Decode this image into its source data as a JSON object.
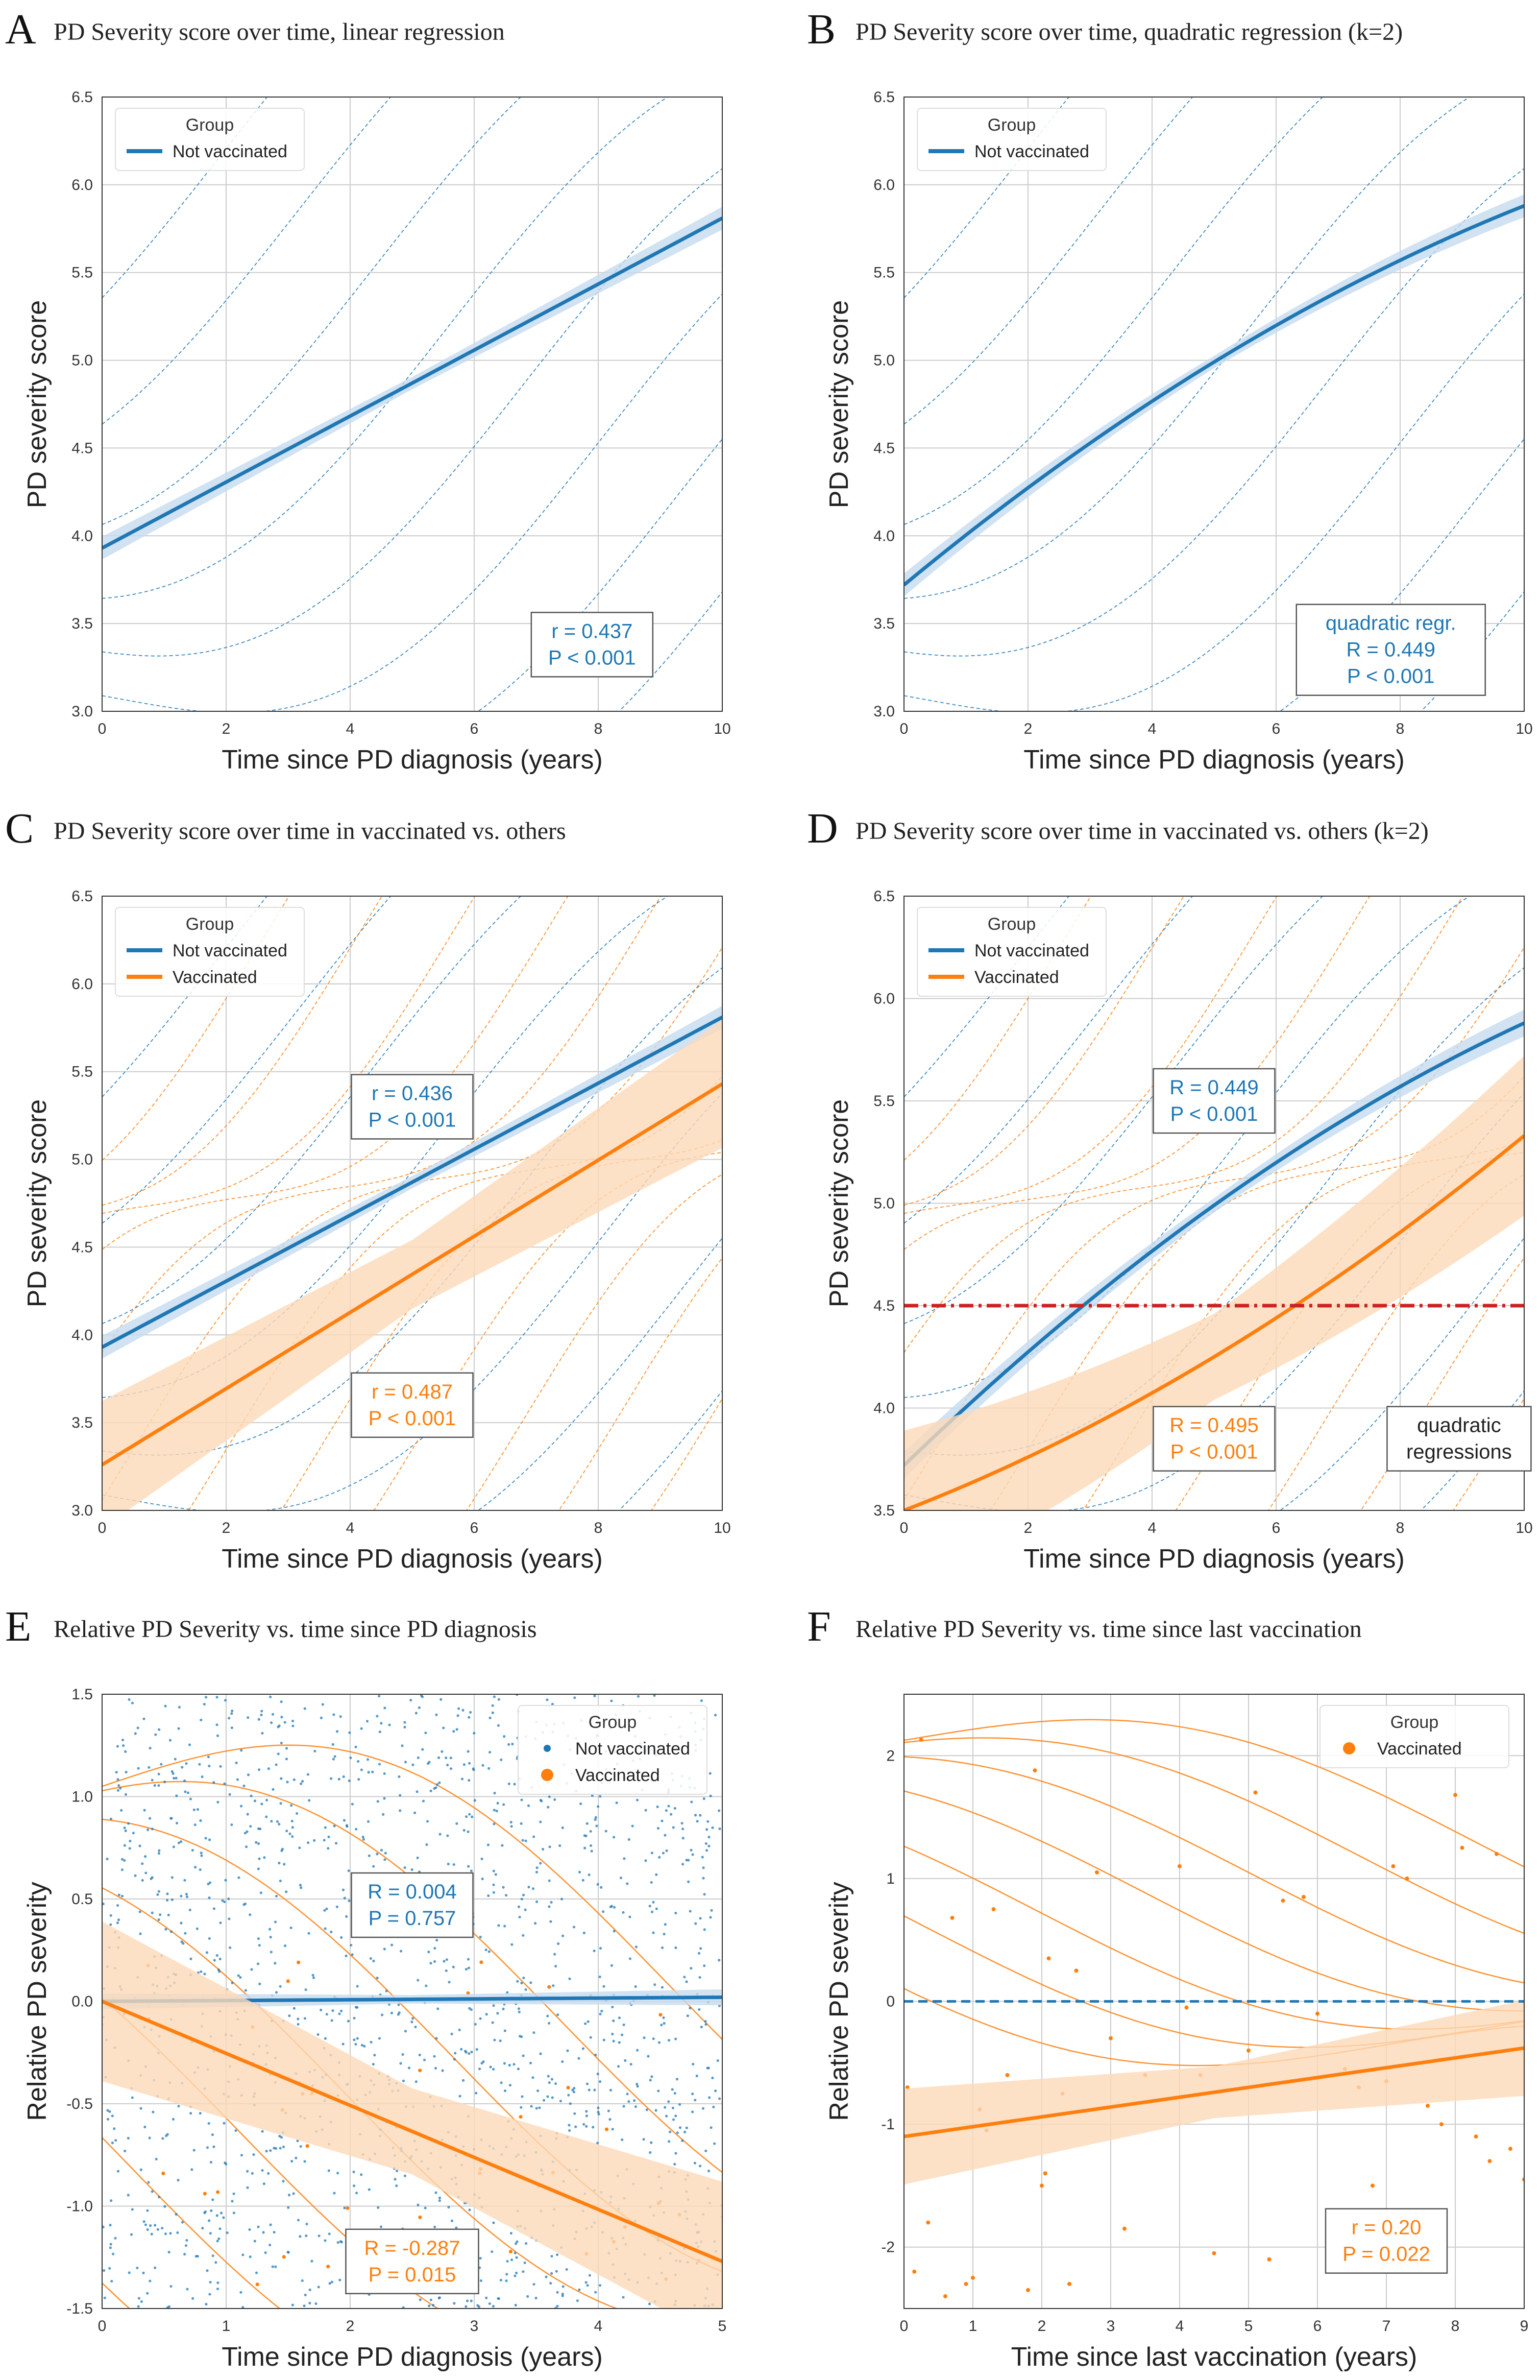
{
  "colors": {
    "blue": "#1f77b4",
    "orange": "#ff7f0e",
    "orange_band": "#fdd9b8",
    "blue_band": "#c6dbef",
    "red_dash": "#cc2222",
    "grid": "#cccccc"
  },
  "chart_data": [
    {
      "id": "A",
      "type": "line",
      "letter": "A",
      "title": "PD Severity score over time, linear regression",
      "xlabel": "Time since PD diagnosis (years)",
      "ylabel": "PD severity score",
      "xlim": [
        0,
        10
      ],
      "ylim": [
        3.0,
        6.5
      ],
      "xticks": [
        0,
        2,
        4,
        6,
        8,
        10
      ],
      "yticks": [
        3.0,
        3.5,
        4.0,
        4.5,
        5.0,
        5.5,
        6.0,
        6.5
      ],
      "legend": {
        "title": "Group",
        "position": "top-left",
        "entries": [
          {
            "label": "Not vaccinated",
            "color": "blue",
            "marker": "line"
          }
        ]
      },
      "series": [
        {
          "name": "Not vaccinated",
          "color": "blue",
          "model": "linear",
          "x": [
            0,
            10
          ],
          "y": [
            3.93,
            5.81
          ],
          "ci": 0.05
        }
      ],
      "annotations": [
        {
          "lines": [
            "r = 0.437",
            "P < 0.001"
          ],
          "color": "blue",
          "at": [
            7.9,
            3.38
          ]
        }
      ]
    },
    {
      "id": "B",
      "type": "line",
      "letter": "B",
      "title": "PD Severity score over time, quadratic regression (k=2)",
      "xlabel": "Time since PD diagnosis (years)",
      "ylabel": "PD severity score",
      "xlim": [
        0,
        10
      ],
      "ylim": [
        3.0,
        6.5
      ],
      "xticks": [
        0,
        2,
        4,
        6,
        8,
        10
      ],
      "yticks": [
        3.0,
        3.5,
        4.0,
        4.5,
        5.0,
        5.5,
        6.0,
        6.5
      ],
      "legend": {
        "title": "Group",
        "position": "top-left",
        "entries": [
          {
            "label": "Not vaccinated",
            "color": "blue",
            "marker": "line"
          }
        ]
      },
      "series": [
        {
          "name": "Not vaccinated",
          "color": "blue",
          "model": "quadratic",
          "x": [
            0,
            5,
            10
          ],
          "y": [
            3.72,
            4.99,
            5.88
          ],
          "ci": 0.05
        }
      ],
      "annotations": [
        {
          "lines": [
            "quadratic regr.",
            "R = 0.449",
            "P < 0.001"
          ],
          "color": "blue",
          "at": [
            7.85,
            3.35
          ]
        }
      ]
    },
    {
      "id": "C",
      "type": "line",
      "letter": "C",
      "title": "PD Severity score over time in vaccinated vs. others",
      "xlabel": "Time since PD diagnosis (years)",
      "ylabel": "PD severity score",
      "xlim": [
        0,
        10
      ],
      "ylim": [
        3.0,
        6.5
      ],
      "xticks": [
        0,
        2,
        4,
        6,
        8,
        10
      ],
      "yticks": [
        3.0,
        3.5,
        4.0,
        4.5,
        5.0,
        5.5,
        6.0,
        6.5
      ],
      "legend": {
        "title": "Group",
        "position": "top-left",
        "entries": [
          {
            "label": "Not vaccinated",
            "color": "blue",
            "marker": "line"
          },
          {
            "label": "Vaccinated",
            "color": "orange",
            "marker": "line"
          }
        ]
      },
      "series": [
        {
          "name": "Not vaccinated",
          "color": "blue",
          "model": "linear",
          "x": [
            0,
            10
          ],
          "y": [
            3.93,
            5.81
          ],
          "ci": 0.05
        },
        {
          "name": "Vaccinated",
          "color": "orange",
          "model": "linear",
          "x": [
            0,
            10
          ],
          "y": [
            3.26,
            5.43
          ],
          "ci": 0.28
        }
      ],
      "annotations": [
        {
          "lines": [
            "r = 0.436",
            "P < 0.001"
          ],
          "color": "blue",
          "at": [
            5.0,
            5.3
          ]
        },
        {
          "lines": [
            "r = 0.487",
            "P < 0.001"
          ],
          "color": "orange",
          "at": [
            5.0,
            3.6
          ]
        }
      ]
    },
    {
      "id": "D",
      "type": "line",
      "letter": "D",
      "title": "PD Severity score over time in vaccinated vs. others (k=2)",
      "xlabel": "Time since PD diagnosis (years)",
      "ylabel": "PD severity score",
      "xlim": [
        0,
        10
      ],
      "ylim": [
        3.5,
        6.5
      ],
      "xticks": [
        0,
        2,
        4,
        6,
        8,
        10
      ],
      "yticks": [
        3.5,
        4.0,
        4.5,
        5.0,
        5.5,
        6.0,
        6.5
      ],
      "legend": {
        "title": "Group",
        "position": "top-left",
        "entries": [
          {
            "label": "Not vaccinated",
            "color": "blue",
            "marker": "line"
          },
          {
            "label": "Vaccinated",
            "color": "orange",
            "marker": "line"
          }
        ]
      },
      "series": [
        {
          "name": "Not vaccinated",
          "color": "blue",
          "model": "quadratic",
          "x": [
            0,
            5,
            10
          ],
          "y": [
            3.72,
            4.99,
            5.88
          ],
          "ci": 0.05
        },
        {
          "name": "Vaccinated",
          "color": "orange",
          "model": "quadratic",
          "x": [
            0,
            5,
            10
          ],
          "y": [
            3.5,
            4.25,
            5.33
          ],
          "ci": 0.3
        }
      ],
      "hline": {
        "y": 4.5,
        "color": "red_dash"
      },
      "annotations": [
        {
          "lines": [
            "R = 0.449",
            "P < 0.001"
          ],
          "color": "blue",
          "at": [
            5.0,
            5.5
          ]
        },
        {
          "lines": [
            "R = 0.495",
            "P < 0.001"
          ],
          "color": "orange",
          "at": [
            5.0,
            3.85
          ]
        },
        {
          "lines": [
            "quadratic",
            "regressions"
          ],
          "color": "black",
          "at": [
            8.95,
            3.85
          ]
        }
      ]
    },
    {
      "id": "E",
      "type": "scatter",
      "letter": "E",
      "title": "Relative PD Severity vs. time since PD diagnosis",
      "xlabel": "Time since PD diagnosis (years)",
      "ylabel": "Relative PD severity",
      "xlim": [
        0,
        5
      ],
      "ylim": [
        -1.5,
        1.5
      ],
      "xticks": [
        0,
        1,
        2,
        3,
        4,
        5
      ],
      "yticks": [
        -1.5,
        -1.0,
        -0.5,
        0.0,
        0.5,
        1.0,
        1.5
      ],
      "legend": {
        "title": "Group",
        "position": "top-right",
        "entries": [
          {
            "label": "Not vaccinated",
            "color": "blue",
            "marker": "dot-small"
          },
          {
            "label": "Vaccinated",
            "color": "orange",
            "marker": "dot"
          }
        ]
      },
      "series": [
        {
          "name": "Not vaccinated",
          "color": "blue",
          "model": "linear",
          "x": [
            0,
            5
          ],
          "y": [
            0.0,
            0.02
          ],
          "ci": 0.03
        },
        {
          "name": "Vaccinated",
          "color": "orange",
          "model": "linear",
          "x": [
            0,
            5
          ],
          "y": [
            0.0,
            -1.27
          ],
          "ci": 0.3
        }
      ],
      "scatter_blue_count": 1600,
      "annotations": [
        {
          "lines": [
            "R = 0.004",
            "P = 0.757"
          ],
          "color": "blue",
          "at": [
            2.5,
            0.47
          ]
        },
        {
          "lines": [
            "R = -0.287",
            "P = 0.015"
          ],
          "color": "orange",
          "at": [
            2.5,
            -1.27
          ]
        }
      ]
    },
    {
      "id": "F",
      "type": "scatter",
      "letter": "F",
      "title": "Relative PD Severity vs. time since last vaccination",
      "xlabel": "Time since last vaccination (years)",
      "ylabel": "Relative PD severity",
      "xlim": [
        0,
        9
      ],
      "ylim": [
        -2.5,
        2.5
      ],
      "xticks": [
        0,
        1,
        2,
        3,
        4,
        5,
        6,
        7,
        8,
        9
      ],
      "yticks": [
        -2,
        -1,
        0,
        1,
        2
      ],
      "legend": {
        "title": "Group",
        "position": "top-right",
        "entries": [
          {
            "label": "Vaccinated",
            "color": "orange",
            "marker": "dot"
          }
        ]
      },
      "series": [
        {
          "name": "Vaccinated",
          "color": "orange",
          "model": "linear",
          "x": [
            0,
            9
          ],
          "y": [
            -1.1,
            -0.38
          ],
          "ci": 0.3
        }
      ],
      "hline": {
        "y": 0,
        "color": "blue"
      },
      "points": {
        "x": [
          0.05,
          0.25,
          0.35,
          0.7,
          0.9,
          1.1,
          1.3,
          1.5,
          1.9,
          2.0,
          2.05,
          2.1,
          2.3,
          2.5,
          2.8,
          3.0,
          3.2,
          4.0,
          4.1,
          4.3,
          4.5,
          5.0,
          5.1,
          5.3,
          5.5,
          5.8,
          6.2,
          6.4,
          6.6,
          6.8,
          7.1,
          7.3,
          7.6,
          7.8,
          8.0,
          8.1,
          8.3,
          8.6,
          8.8,
          9.0,
          0.15,
          0.6,
          1.0,
          1.2,
          1.8,
          2.4,
          3.5,
          6.0,
          7.0,
          8.5
        ],
        "y": [
          -0.7,
          2.13,
          -1.8,
          0.68,
          -2.3,
          -0.88,
          0.75,
          -0.6,
          1.88,
          -1.5,
          -1.4,
          0.35,
          -0.75,
          0.25,
          1.05,
          -0.3,
          -1.85,
          1.1,
          -0.05,
          -0.6,
          -2.05,
          -0.4,
          1.7,
          -2.1,
          0.82,
          0.85,
          -1.8,
          -0.55,
          -0.7,
          -1.5,
          1.1,
          1.0,
          -0.85,
          -1.0,
          1.68,
          1.25,
          -1.1,
          1.2,
          -1.2,
          -1.45,
          -2.2,
          -2.4,
          -2.25,
          -1.05,
          -2.35,
          -2.3,
          -0.6,
          -0.1,
          -0.65,
          -1.3
        ]
      },
      "annotations": [
        {
          "lines": [
            "r = 0.20",
            "P = 0.022"
          ],
          "color": "orange",
          "at": [
            7.0,
            -1.95
          ]
        }
      ]
    }
  ]
}
